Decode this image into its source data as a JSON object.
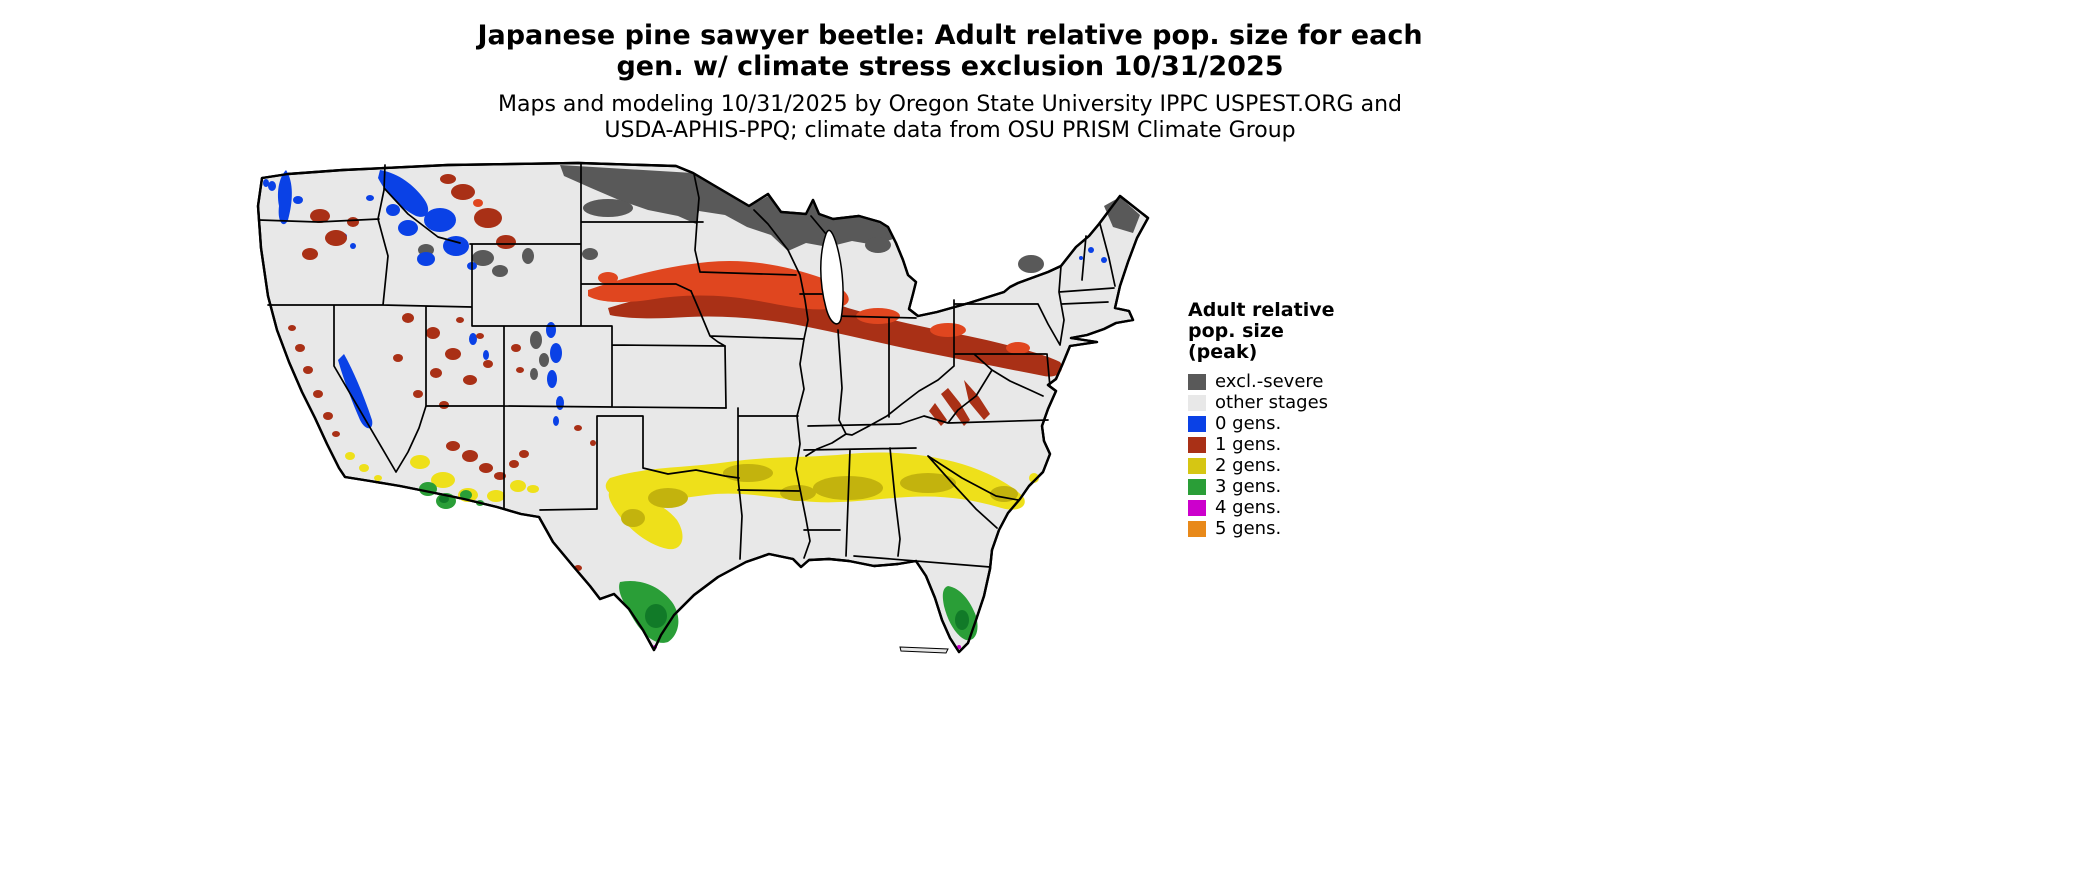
{
  "figure": {
    "title_line1": "Japanese pine sawyer beetle: Adult relative pop. size for each",
    "title_line2": "gen. w/ climate stress exclusion 10/31/2025",
    "subtitle_line1": "Maps and modeling 10/31/2025 by Oregon State University IPPC USPEST.ORG and",
    "subtitle_line2": "USDA-APHIS-PPQ; climate data from OSU PRISM Climate Group"
  },
  "legend": {
    "title_lines": [
      "Adult relative",
      "pop. size",
      "(peak)"
    ],
    "items": [
      {
        "key": "excl_severe",
        "label": "excl.-severe",
        "color": "#595959"
      },
      {
        "key": "other_stages",
        "label": "other stages",
        "color": "#e8e8e8"
      },
      {
        "key": "gens0",
        "label": "0 gens.",
        "color": "#0a41e6"
      },
      {
        "key": "gens1",
        "label": "1 gens.",
        "color": "#a93016"
      },
      {
        "key": "gens2",
        "label": "2 gens.",
        "color": "#d6c613"
      },
      {
        "key": "gens3",
        "label": "3 gens.",
        "color": "#2a9e37"
      },
      {
        "key": "gens4",
        "label": "4 gens.",
        "color": "#cc00cc"
      },
      {
        "key": "gens5",
        "label": "5 gens.",
        "color": "#e8891a"
      }
    ]
  },
  "map": {
    "base_color": "#e8e8e8",
    "outline_color": "#000000",
    "water_color": "#ffffff",
    "shade_colors": {
      "gens1_bright": "#e0461f",
      "gens2_bright": "#eee01a",
      "gens2_dark": "#c3b30d",
      "gens3_dark": "#117a28"
    }
  }
}
